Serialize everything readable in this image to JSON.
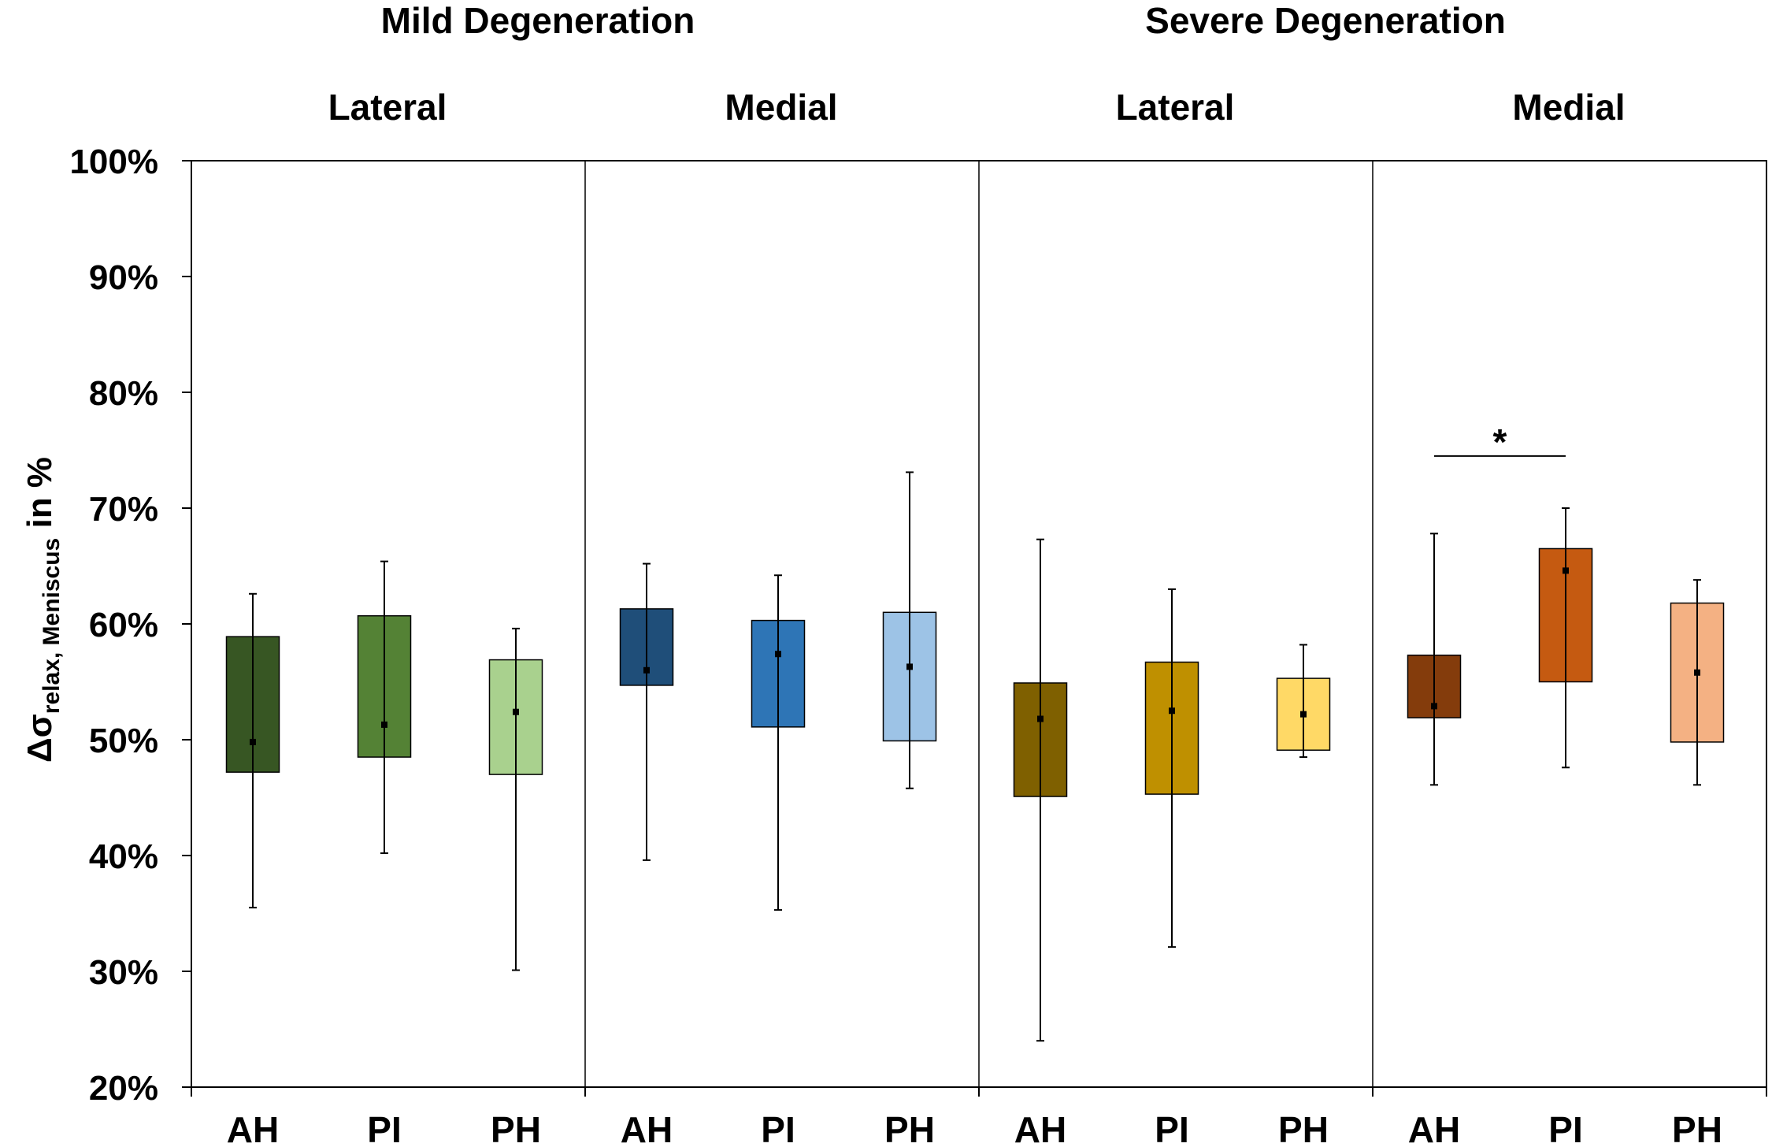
{
  "chart_data": {
    "type": "bar",
    "ylabel": {
      "symbol": "Δσ",
      "subscript": "relax, Meniscus",
      "suffix": " in %"
    },
    "ylim": [
      20,
      100
    ],
    "yticks": [
      20,
      30,
      40,
      50,
      60,
      70,
      80,
      90,
      100
    ],
    "ytick_labels": [
      "20%",
      "30%",
      "40%",
      "50%",
      "60%",
      "70%",
      "80%",
      "90%",
      "100%"
    ],
    "groups": [
      "Mild Degeneration",
      "Severe Degeneration"
    ],
    "panels": [
      {
        "group": "Mild Degeneration",
        "region": "Lateral"
      },
      {
        "group": "Mild Degeneration",
        "region": "Medial"
      },
      {
        "group": "Severe Degeneration",
        "region": "Lateral"
      },
      {
        "group": "Severe Degeneration",
        "region": "Medial"
      }
    ],
    "boxes": [
      {
        "panel": 0,
        "label": "AH",
        "color": "#375623",
        "q1": 47.2,
        "q3": 58.9,
        "mean": 49.8,
        "min": 35.5,
        "max": 62.6
      },
      {
        "panel": 0,
        "label": "PI",
        "color": "#548235",
        "q1": 48.5,
        "q3": 60.7,
        "mean": 51.3,
        "min": 40.2,
        "max": 65.4
      },
      {
        "panel": 0,
        "label": "PH",
        "color": "#A9D18E",
        "q1": 47.0,
        "q3": 56.9,
        "mean": 52.4,
        "min": 30.1,
        "max": 59.6
      },
      {
        "panel": 1,
        "label": "AH",
        "color": "#1F4E79",
        "q1": 54.7,
        "q3": 61.3,
        "mean": 56.0,
        "min": 39.6,
        "max": 65.2
      },
      {
        "panel": 1,
        "label": "PI",
        "color": "#2E75B6",
        "q1": 51.1,
        "q3": 60.3,
        "mean": 57.4,
        "min": 35.3,
        "max": 64.2
      },
      {
        "panel": 1,
        "label": "PH",
        "color": "#9DC3E6",
        "q1": 49.9,
        "q3": 61.0,
        "mean": 56.3,
        "min": 45.8,
        "max": 73.1
      },
      {
        "panel": 2,
        "label": "AH",
        "color": "#7F6000",
        "q1": 45.1,
        "q3": 54.9,
        "mean": 51.8,
        "min": 24.0,
        "max": 67.3
      },
      {
        "panel": 2,
        "label": "PI",
        "color": "#BF9000",
        "q1": 45.3,
        "q3": 56.7,
        "mean": 52.5,
        "min": 32.1,
        "max": 63.0
      },
      {
        "panel": 2,
        "label": "PH",
        "color": "#FFD966",
        "q1": 49.1,
        "q3": 55.3,
        "mean": 52.2,
        "min": 48.5,
        "max": 58.2
      },
      {
        "panel": 3,
        "label": "AH",
        "color": "#843C0C",
        "q1": 51.9,
        "q3": 57.3,
        "mean": 52.9,
        "min": 46.1,
        "max": 67.8
      },
      {
        "panel": 3,
        "label": "PI",
        "color": "#C55A11",
        "q1": 55.0,
        "q3": 66.5,
        "mean": 64.6,
        "min": 47.6,
        "max": 70.0
      },
      {
        "panel": 3,
        "label": "PH",
        "color": "#F4B183",
        "q1": 49.8,
        "q3": 61.8,
        "mean": 55.8,
        "min": 46.1,
        "max": 63.8
      }
    ],
    "significance": [
      {
        "panel": 3,
        "from": "AH",
        "to": "PI",
        "y": 74.5,
        "label": "*"
      }
    ]
  }
}
